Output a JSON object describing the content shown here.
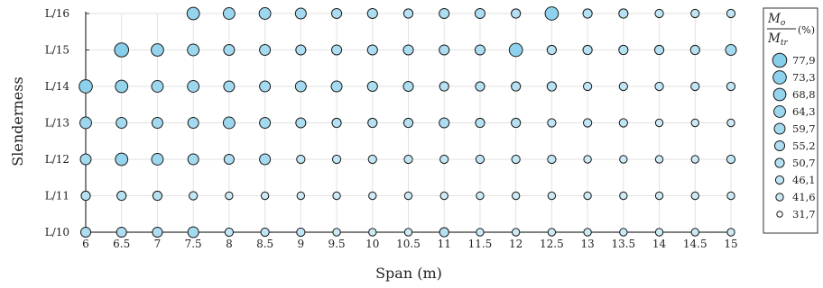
{
  "chart_data": {
    "type": "scatter",
    "title": "",
    "xlabel": "Span (m)",
    "ylabel": "Slenderness",
    "x_categories": [
      "6",
      "6.5",
      "7",
      "7.5",
      "8",
      "8.5",
      "9",
      "9.5",
      "10",
      "10.5",
      "11",
      "11.5",
      "12",
      "12.5",
      "13",
      "13.5",
      "14",
      "14.5",
      "15"
    ],
    "y_categories": [
      "L/10",
      "L/11",
      "L/12",
      "L/13",
      "L/14",
      "L/15",
      "L/16"
    ],
    "grid": true,
    "legend": {
      "placement": "right",
      "title_numerator": "M",
      "title_numerator_sub": "o",
      "title_denominator": "M",
      "title_denominator_sub": "tr",
      "title_unit": "(%)",
      "entries": [
        "77,9",
        "73,3",
        "68,8",
        "64,3",
        "59,7",
        "55,2",
        "50,7",
        "46,1",
        "41,6",
        "31,7"
      ],
      "values": [
        77.9,
        73.3,
        68.8,
        64.3,
        59.7,
        55.2,
        50.7,
        46.1,
        41.6,
        31.7
      ]
    },
    "size_range": [
      31.7,
      77.9
    ],
    "color_stops": [
      "#ffffff",
      "#87ceeb"
    ],
    "rows": [
      {
        "y": "L/10",
        "values": [
          55.2,
          55.2,
          55.2,
          59.7,
          46.1,
          46.1,
          46.1,
          41.6,
          41.6,
          41.6,
          50.7,
          41.6,
          41.6,
          41.6,
          41.6,
          41.6,
          41.6,
          41.6,
          41.6
        ]
      },
      {
        "y": "L/11",
        "values": [
          50.7,
          50.7,
          50.7,
          46.1,
          41.6,
          41.6,
          41.6,
          41.6,
          41.6,
          41.6,
          41.6,
          41.6,
          41.6,
          41.6,
          41.6,
          41.6,
          41.6,
          41.6,
          41.6
        ]
      },
      {
        "y": "L/12",
        "values": [
          59.7,
          68.8,
          64.3,
          59.7,
          55.2,
          59.7,
          46.1,
          46.1,
          46.1,
          46.1,
          46.1,
          46.1,
          46.1,
          46.1,
          41.6,
          41.6,
          41.6,
          41.6,
          46.1
        ]
      },
      {
        "y": "L/13",
        "values": [
          64.3,
          59.7,
          59.7,
          59.7,
          64.3,
          59.7,
          55.2,
          50.7,
          50.7,
          50.7,
          55.2,
          50.7,
          50.7,
          46.1,
          46.1,
          46.1,
          41.6,
          41.6,
          41.6
        ]
      },
      {
        "y": "L/14",
        "values": [
          73.3,
          68.8,
          64.3,
          64.3,
          59.7,
          59.7,
          59.7,
          59.7,
          55.2,
          55.2,
          50.7,
          50.7,
          50.7,
          50.7,
          46.1,
          46.1,
          46.1,
          46.1,
          46.1
        ]
      },
      {
        "y": "L/15",
        "values": [
          null,
          77.9,
          68.8,
          64.3,
          59.7,
          59.7,
          55.2,
          55.2,
          55.2,
          55.2,
          55.2,
          55.2,
          73.3,
          50.7,
          50.7,
          50.7,
          50.7,
          50.7,
          59.7
        ]
      },
      {
        "y": "L/16",
        "values": [
          null,
          null,
          null,
          68.8,
          64.3,
          64.3,
          59.7,
          55.2,
          55.2,
          50.7,
          55.2,
          55.2,
          50.7,
          73.3,
          50.7,
          50.7,
          46.1,
          46.1,
          46.1
        ]
      }
    ]
  }
}
